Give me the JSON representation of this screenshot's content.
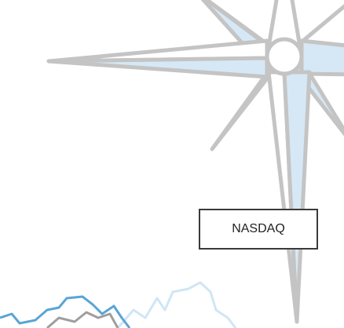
{
  "button": {
    "label": "NASDAQ"
  }
}
